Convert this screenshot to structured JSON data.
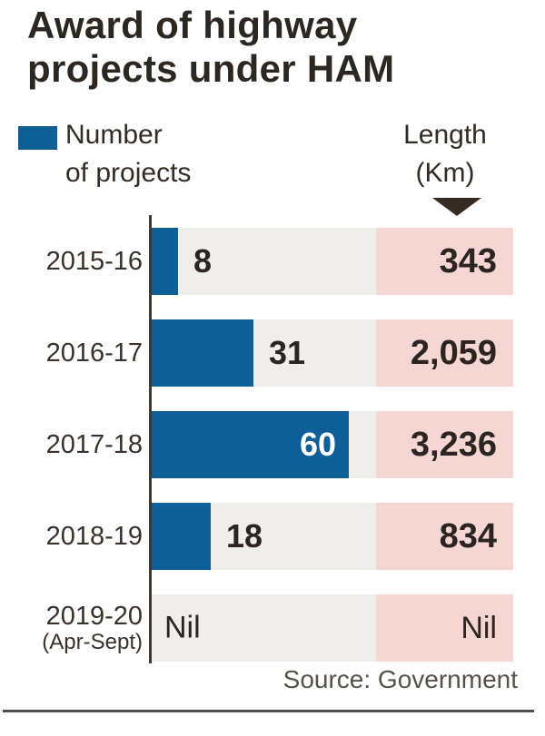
{
  "title": {
    "line1": "Award of highway",
    "line2": "projects under HAM"
  },
  "legend": {
    "projects": {
      "line1": "Number",
      "line2": "of projects"
    },
    "length": {
      "line1": "Length",
      "line2": "(Km)"
    }
  },
  "source": "Source: Government",
  "colors": {
    "bar_blue": "#0e5f97",
    "length_pink": "#f5d6d3",
    "track_gray": "#f0eeeb",
    "text_dark": "#2b2420",
    "triangle_dark": "#352b22"
  },
  "chart_data": {
    "type": "bar",
    "orientation": "horizontal",
    "title": "Award of highway projects under HAM",
    "categories": [
      "2015-16",
      "2016-17",
      "2017-18",
      "2018-19",
      "2019-20 (Apr-Sept)"
    ],
    "series": [
      {
        "name": "Number of projects",
        "values": [
          8,
          31,
          60,
          18,
          null
        ]
      },
      {
        "name": "Length (Km)",
        "values": [
          343,
          2059,
          3236,
          834,
          null
        ]
      }
    ],
    "value_axis_max": 60,
    "grid": false,
    "legend_position": "top",
    "source": "Government",
    "rows": [
      {
        "year": "2015-16",
        "projects_label": "8",
        "length_label": "343"
      },
      {
        "year": "2016-17",
        "projects_label": "31",
        "length_label": "2,059"
      },
      {
        "year": "2017-18",
        "projects_label": "60",
        "length_label": "3,236"
      },
      {
        "year": "2018-19",
        "projects_label": "18",
        "length_label": "834"
      },
      {
        "year": "2019-20",
        "year_sub": "(Apr-Sept)",
        "projects_label": "Nil",
        "length_label": "Nil"
      }
    ]
  }
}
